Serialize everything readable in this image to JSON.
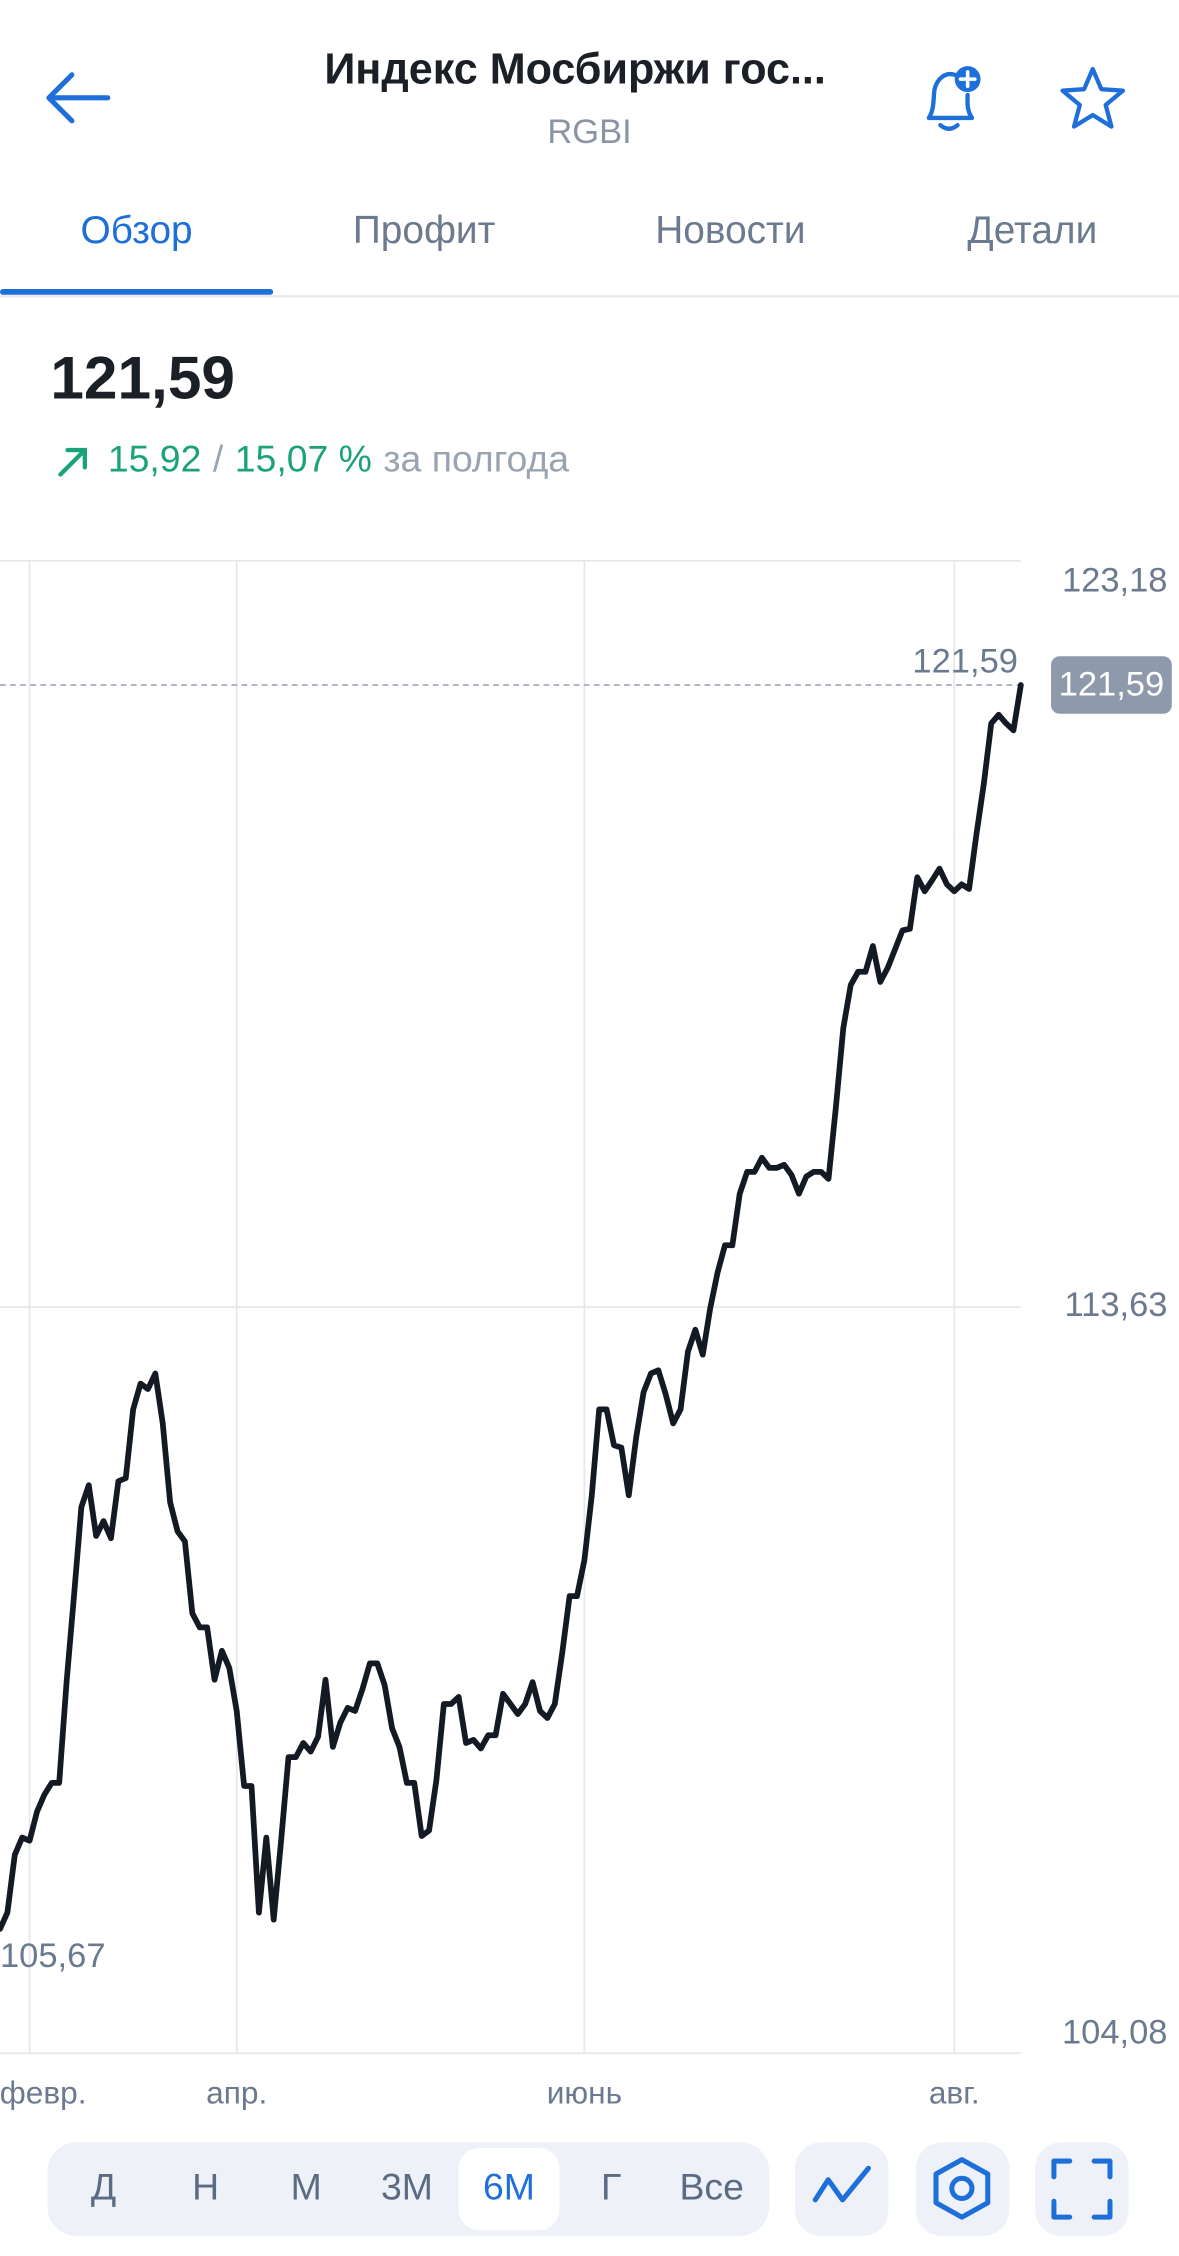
{
  "header": {
    "title": "Индекс Мосбиржи гос...",
    "subtitle": "RGBI"
  },
  "tabs": [
    "Обзор",
    "Профит",
    "Новости",
    "Детали"
  ],
  "quote": {
    "price": "121,59",
    "change": "15,92",
    "separator": "/",
    "percent": "15,07 %",
    "period": "за полгода"
  },
  "periods": [
    "Д",
    "Н",
    "М",
    "3М",
    "6М",
    "Г",
    "Все"
  ],
  "active_period": "6М",
  "chart_data": {
    "type": "line",
    "color": "#141a24",
    "values": [
      105.67,
      105.88,
      106.62,
      106.84,
      106.8,
      107.17,
      107.39,
      107.54,
      107.54,
      108.83,
      109.93,
      111.07,
      111.35,
      110.7,
      110.89,
      110.67,
      111.4,
      111.44,
      112.32,
      112.65,
      112.58,
      112.78,
      112.14,
      111.13,
      110.76,
      110.63,
      109.71,
      109.53,
      109.53,
      108.86,
      109.23,
      109.01,
      108.46,
      107.5,
      107.5,
      105.88,
      106.84,
      105.79,
      106.8,
      107.87,
      107.87,
      108.05,
      107.94,
      108.13,
      108.86,
      108.0,
      108.31,
      108.5,
      108.46,
      108.74,
      109.07,
      109.07,
      108.79,
      108.24,
      108.0,
      107.54,
      107.54,
      106.86,
      106.93,
      107.58,
      108.55,
      108.55,
      108.64,
      108.05,
      108.09,
      107.98,
      108.15,
      108.15,
      108.68,
      108.55,
      108.42,
      108.55,
      108.83,
      108.46,
      108.37,
      108.55,
      109.2,
      109.93,
      109.93,
      110.39,
      111.22,
      112.32,
      112.32,
      111.86,
      111.83,
      111.22,
      111.96,
      112.54,
      112.78,
      112.82,
      112.51,
      112.14,
      112.32,
      113.06,
      113.34,
      113.02,
      113.61,
      114.07,
      114.42,
      114.42,
      115.08,
      115.36,
      115.36,
      115.54,
      115.41,
      115.41,
      115.45,
      115.32,
      115.08,
      115.3,
      115.36,
      115.36,
      115.27,
      116.19,
      117.2,
      117.75,
      117.92,
      117.92,
      118.25,
      117.79,
      117.97,
      118.21,
      118.45,
      118.47,
      119.13,
      118.95,
      119.09,
      119.24,
      119.04,
      118.95,
      119.04,
      118.98,
      119.68,
      120.33,
      121.1,
      121.21,
      121.1,
      121.01,
      121.59
    ],
    "xlim": [
      0,
      138
    ],
    "xticks": [
      {
        "value": 4,
        "label": "февр."
      },
      {
        "value": 32,
        "label": "апр."
      },
      {
        "value": 79,
        "label": "июнь"
      },
      {
        "value": 129,
        "label": "авг."
      }
    ],
    "ylim": [
      104.08,
      123.18
    ],
    "yticks": [
      {
        "value": 123.18,
        "label": "123,18"
      },
      {
        "value": 113.63,
        "label": "113,63"
      },
      {
        "value": 104.08,
        "label": "104,08"
      }
    ],
    "grid": true,
    "max_label": {
      "value": 121.59,
      "label": "121,59"
    },
    "min_label": {
      "value": 105.67,
      "label": "105,67"
    },
    "current": {
      "value": 121.59,
      "label": "121,59"
    }
  }
}
